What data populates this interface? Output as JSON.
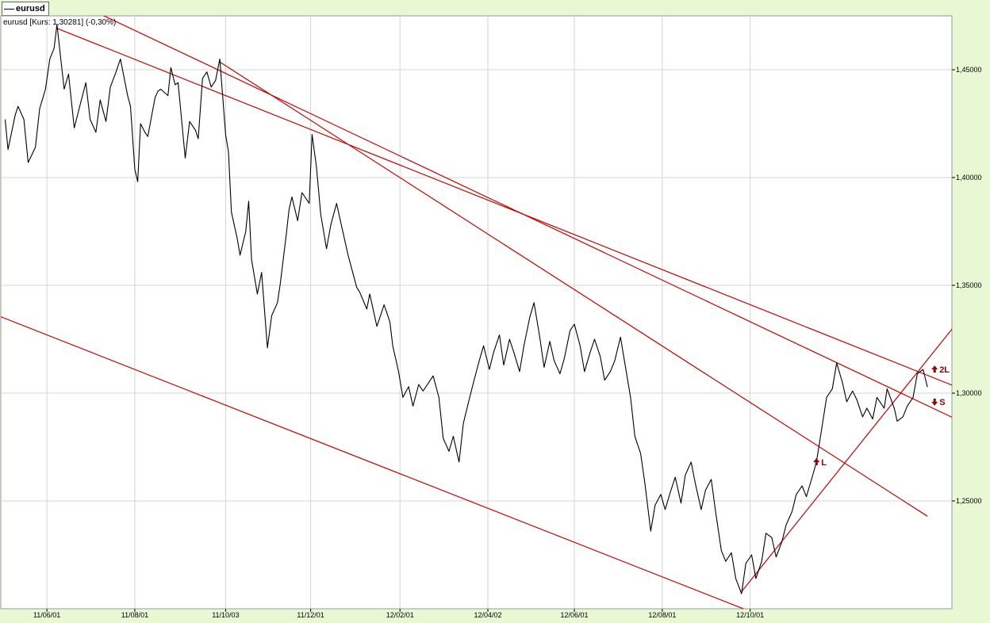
{
  "window": {
    "tab_label": "eurusd"
  },
  "chart_data": {
    "type": "line",
    "title": "eurusd [Kurs: 1,30281] (-0,30%)",
    "series": [
      {
        "name": "eurusd",
        "points": [
          [
            "2011-05-03",
            1.427
          ],
          [
            "2011-05-05",
            1.413
          ],
          [
            "2011-05-10",
            1.429
          ],
          [
            "2011-05-12",
            1.433
          ],
          [
            "2011-05-16",
            1.427
          ],
          [
            "2011-05-19",
            1.407
          ],
          [
            "2011-05-24",
            1.414
          ],
          [
            "2011-05-27",
            1.432
          ],
          [
            "2011-05-31",
            1.441
          ],
          [
            "2011-06-03",
            1.455
          ],
          [
            "2011-06-06",
            1.46
          ],
          [
            "2011-06-08",
            1.471
          ],
          [
            "2011-06-13",
            1.441
          ],
          [
            "2011-06-16",
            1.448
          ],
          [
            "2011-06-20",
            1.423
          ],
          [
            "2011-06-23",
            1.431
          ],
          [
            "2011-06-28",
            1.444
          ],
          [
            "2011-07-01",
            1.427
          ],
          [
            "2011-07-05",
            1.421
          ],
          [
            "2011-07-08",
            1.436
          ],
          [
            "2011-07-12",
            1.426
          ],
          [
            "2011-07-15",
            1.442
          ],
          [
            "2011-07-19",
            1.449
          ],
          [
            "2011-07-22",
            1.455
          ],
          [
            "2011-07-27",
            1.438
          ],
          [
            "2011-07-29",
            1.433
          ],
          [
            "2011-08-01",
            1.404
          ],
          [
            "2011-08-03",
            1.398
          ],
          [
            "2011-08-05",
            1.425
          ],
          [
            "2011-08-08",
            1.421
          ],
          [
            "2011-08-10",
            1.419
          ],
          [
            "2011-08-15",
            1.437
          ],
          [
            "2011-08-17",
            1.44
          ],
          [
            "2011-08-19",
            1.441
          ],
          [
            "2011-08-24",
            1.438
          ],
          [
            "2011-08-26",
            1.451
          ],
          [
            "2011-08-29",
            1.443
          ],
          [
            "2011-08-31",
            1.444
          ],
          [
            "2011-09-02",
            1.43
          ],
          [
            "2011-09-05",
            1.409
          ],
          [
            "2011-09-08",
            1.426
          ],
          [
            "2011-09-12",
            1.422
          ],
          [
            "2011-09-14",
            1.418
          ],
          [
            "2011-09-17",
            1.446
          ],
          [
            "2011-09-20",
            1.449
          ],
          [
            "2011-09-23",
            1.442
          ],
          [
            "2011-09-26",
            1.445
          ],
          [
            "2011-09-29",
            1.455
          ],
          [
            "2011-10-03",
            1.42
          ],
          [
            "2011-10-05",
            1.412
          ],
          [
            "2011-10-07",
            1.384
          ],
          [
            "2011-10-11",
            1.372
          ],
          [
            "2011-10-13",
            1.364
          ],
          [
            "2011-10-17",
            1.375
          ],
          [
            "2011-10-19",
            1.389
          ],
          [
            "2011-10-21",
            1.362
          ],
          [
            "2011-10-25",
            1.346
          ],
          [
            "2011-10-28",
            1.356
          ],
          [
            "2011-11-01",
            1.321
          ],
          [
            "2011-11-04",
            1.336
          ],
          [
            "2011-11-08",
            1.342
          ],
          [
            "2011-11-10",
            1.351
          ],
          [
            "2011-11-14",
            1.373
          ],
          [
            "2011-11-16",
            1.385
          ],
          [
            "2011-11-18",
            1.391
          ],
          [
            "2011-11-22",
            1.38
          ],
          [
            "2011-11-25",
            1.393
          ],
          [
            "2011-11-30",
            1.388
          ],
          [
            "2011-12-02",
            1.42
          ],
          [
            "2011-12-05",
            1.405
          ],
          [
            "2011-12-08",
            1.383
          ],
          [
            "2011-12-12",
            1.367
          ],
          [
            "2011-12-15",
            1.378
          ],
          [
            "2011-12-19",
            1.388
          ],
          [
            "2011-12-23",
            1.376
          ],
          [
            "2011-12-27",
            1.364
          ],
          [
            "2012-01-02",
            1.349
          ],
          [
            "2012-01-04",
            1.347
          ],
          [
            "2012-01-09",
            1.339
          ],
          [
            "2012-01-11",
            1.346
          ],
          [
            "2012-01-16",
            1.331
          ],
          [
            "2012-01-18",
            1.335
          ],
          [
            "2012-01-21",
            1.341
          ],
          [
            "2012-01-25",
            1.333
          ],
          [
            "2012-01-27",
            1.322
          ],
          [
            "2012-01-31",
            1.31
          ],
          [
            "2012-02-03",
            1.298
          ],
          [
            "2012-02-07",
            1.303
          ],
          [
            "2012-02-10",
            1.294
          ],
          [
            "2012-02-14",
            1.304
          ],
          [
            "2012-02-17",
            1.301
          ],
          [
            "2012-02-21",
            1.305
          ],
          [
            "2012-02-24",
            1.308
          ],
          [
            "2012-02-28",
            1.298
          ],
          [
            "2012-03-02",
            1.279
          ],
          [
            "2012-03-06",
            1.273
          ],
          [
            "2012-03-09",
            1.28
          ],
          [
            "2012-03-13",
            1.268
          ],
          [
            "2012-03-16",
            1.286
          ],
          [
            "2012-03-20",
            1.297
          ],
          [
            "2012-03-23",
            1.305
          ],
          [
            "2012-03-27",
            1.315
          ],
          [
            "2012-03-30",
            1.322
          ],
          [
            "2012-04-03",
            1.311
          ],
          [
            "2012-04-06",
            1.319
          ],
          [
            "2012-04-10",
            1.327
          ],
          [
            "2012-04-13",
            1.313
          ],
          [
            "2012-04-17",
            1.325
          ],
          [
            "2012-04-20",
            1.319
          ],
          [
            "2012-04-24",
            1.31
          ],
          [
            "2012-04-27",
            1.322
          ],
          [
            "2012-05-01",
            1.335
          ],
          [
            "2012-05-04",
            1.342
          ],
          [
            "2012-05-08",
            1.326
          ],
          [
            "2012-05-11",
            1.312
          ],
          [
            "2012-05-15",
            1.324
          ],
          [
            "2012-05-18",
            1.315
          ],
          [
            "2012-05-22",
            1.309
          ],
          [
            "2012-05-25",
            1.316
          ],
          [
            "2012-05-29",
            1.329
          ],
          [
            "2012-06-01",
            1.332
          ],
          [
            "2012-06-05",
            1.322
          ],
          [
            "2012-06-08",
            1.31
          ],
          [
            "2012-06-12",
            1.319
          ],
          [
            "2012-06-15",
            1.325
          ],
          [
            "2012-06-19",
            1.317
          ],
          [
            "2012-06-22",
            1.306
          ],
          [
            "2012-06-26",
            1.31
          ],
          [
            "2012-06-29",
            1.315
          ],
          [
            "2012-07-03",
            1.326
          ],
          [
            "2012-07-06",
            1.314
          ],
          [
            "2012-07-10",
            1.298
          ],
          [
            "2012-07-13",
            1.28
          ],
          [
            "2012-07-17",
            1.272
          ],
          [
            "2012-07-20",
            1.258
          ],
          [
            "2012-07-24",
            1.236
          ],
          [
            "2012-07-27",
            1.248
          ],
          [
            "2012-07-31",
            1.253
          ],
          [
            "2012-08-03",
            1.246
          ],
          [
            "2012-08-07",
            1.255
          ],
          [
            "2012-08-10",
            1.261
          ],
          [
            "2012-08-14",
            1.249
          ],
          [
            "2012-08-17",
            1.262
          ],
          [
            "2012-08-21",
            1.268
          ],
          [
            "2012-08-24",
            1.258
          ],
          [
            "2012-08-28",
            1.246
          ],
          [
            "2012-08-31",
            1.255
          ],
          [
            "2012-09-04",
            1.26
          ],
          [
            "2012-09-07",
            1.245
          ],
          [
            "2012-09-11",
            1.227
          ],
          [
            "2012-09-14",
            1.222
          ],
          [
            "2012-09-18",
            1.226
          ],
          [
            "2012-09-21",
            1.214
          ],
          [
            "2012-09-25",
            1.207
          ],
          [
            "2012-09-28",
            1.221
          ],
          [
            "2012-10-02",
            1.225
          ],
          [
            "2012-10-05",
            1.214
          ],
          [
            "2012-10-09",
            1.222
          ],
          [
            "2012-10-12",
            1.235
          ],
          [
            "2012-10-16",
            1.233
          ],
          [
            "2012-10-19",
            1.224
          ],
          [
            "2012-10-23",
            1.231
          ],
          [
            "2012-10-26",
            1.239
          ],
          [
            "2012-10-30",
            1.245
          ],
          [
            "2012-11-02",
            1.253
          ],
          [
            "2012-11-06",
            1.257
          ],
          [
            "2012-11-09",
            1.252
          ],
          [
            "2012-11-13",
            1.261
          ],
          [
            "2012-11-16",
            1.268
          ],
          [
            "2012-11-20",
            1.285
          ],
          [
            "2012-11-23",
            1.298
          ],
          [
            "2012-11-27",
            1.302
          ],
          [
            "2012-11-30",
            1.314
          ],
          [
            "2012-12-04",
            1.305
          ],
          [
            "2012-12-07",
            1.296
          ],
          [
            "2012-12-11",
            1.301
          ],
          [
            "2012-12-14",
            1.297
          ],
          [
            "2012-12-18",
            1.289
          ],
          [
            "2012-12-21",
            1.293
          ],
          [
            "2012-12-25",
            1.288
          ],
          [
            "2012-12-28",
            1.298
          ],
          [
            "2013-01-02",
            1.293
          ],
          [
            "2013-01-04",
            1.302
          ],
          [
            "2013-01-09",
            1.293
          ],
          [
            "2013-01-11",
            1.287
          ],
          [
            "2013-01-15",
            1.289
          ],
          [
            "2013-01-18",
            1.294
          ],
          [
            "2013-01-22",
            1.298
          ],
          [
            "2013-01-25",
            1.309
          ],
          [
            "2013-01-29",
            1.311
          ],
          [
            "2013-02-01",
            1.3028
          ]
        ]
      }
    ],
    "trendlines": [
      {
        "from": [
          "2011-06-08",
          1.4692
        ],
        "to": [
          "2013-02-20",
          1.3032
        ]
      },
      {
        "from": [
          "2011-05-16",
          1.4926
        ],
        "to": [
          "2013-02-20",
          1.2882
        ]
      },
      {
        "from": [
          "2011-09-29",
          1.4536
        ],
        "to": [
          "2013-02-01",
          1.2429
        ]
      },
      {
        "from": [
          "2011-03-01",
          1.3512
        ],
        "to": [
          "2012-11-01",
          1.1906
        ]
      },
      {
        "from": [
          "2012-09-25",
          1.2079
        ],
        "to": [
          "2013-02-28",
          1.338
        ]
      }
    ],
    "signals": [
      {
        "label": "L",
        "date": "2012-11-16",
        "value": 1.268,
        "direction": "up"
      },
      {
        "label": "2L",
        "date": "2013-02-06",
        "value": 1.311,
        "direction": "up"
      },
      {
        "label": "S",
        "date": "2013-02-06",
        "value": 1.296,
        "direction": "down"
      }
    ],
    "x_ticks": [
      "11/06/01",
      "11/08/01",
      "11/10/03",
      "11/12/01",
      "12/02/01",
      "12/04/02",
      "12/06/01",
      "12/08/01",
      "12/10/01"
    ],
    "y_ticks": [
      "1,25000",
      "1,30000",
      "1,35000",
      "1,40000",
      "1,45000"
    ],
    "xlim": [
      "2011-04-30",
      "2013-02-18"
    ],
    "ylim": [
      1.2,
      1.475
    ],
    "grid": true,
    "colors": {
      "series": "#000000",
      "trendline": "#cc0000",
      "signal": "#990000",
      "grid": "#d4d4d4",
      "background": "#ffffff",
      "frame": "#e8f8d4"
    }
  }
}
